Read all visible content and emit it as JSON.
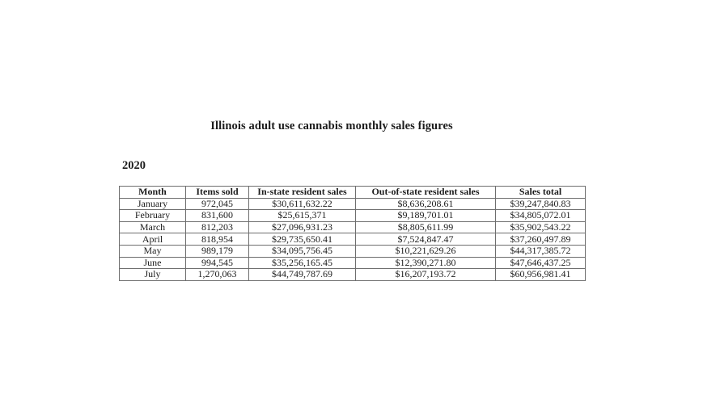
{
  "page": {
    "title": "Illinois adult use cannabis monthly sales figures",
    "year_label": "2020"
  },
  "table": {
    "columns": [
      "Month",
      "Items sold",
      "In-state resident sales",
      "Out-of-state resident sales",
      "Sales total"
    ],
    "rows": [
      [
        "January",
        "972,045",
        "$30,611,632.22",
        "$8,636,208.61",
        "$39,247,840.83"
      ],
      [
        "February",
        "831,600",
        "$25,615,371",
        "$9,189,701.01",
        "$34,805,072.01"
      ],
      [
        "March",
        "812,203",
        "$27,096,931.23",
        "$8,805,611.99",
        "$35,902,543.22"
      ],
      [
        "April",
        "818,954",
        "$29,735,650.41",
        "$7,524,847.47",
        "$37,260,497.89"
      ],
      [
        "May",
        "989,179",
        "$34,095,756.45",
        "$10,221,629.26",
        "$44,317,385.72"
      ],
      [
        "June",
        "994,545",
        "$35,256,165.45",
        "$12,390,271.80",
        "$47,646,437.25"
      ],
      [
        "July",
        "1,270,063",
        "$44,749,787.69",
        "$16,207,193.72",
        "$60,956,981.41"
      ]
    ]
  },
  "colors": {
    "background": "#ffffff",
    "text": "#1c1c1c",
    "border": "#6e6e6e"
  }
}
